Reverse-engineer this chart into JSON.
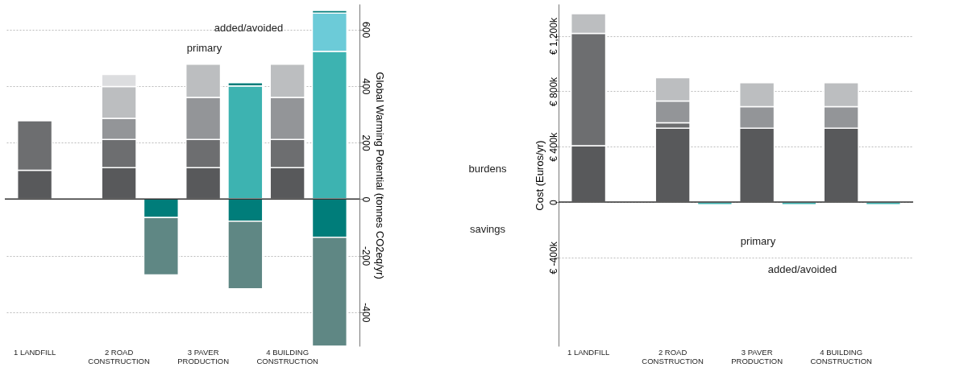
{
  "chart_data": [
    {
      "type": "bar",
      "stacked": true,
      "ylabel": "Global Warming Potential (tonnes CO2eq/yr)",
      "categories": [
        "1 LANDFILL",
        null,
        "2 ROAD CONSTRUCTION",
        null,
        "3 PAVER PRODUCTION",
        null,
        "4 BUILDING CONSTRUCTION",
        null
      ],
      "series": [
        {
          "color": "#58595b",
          "values": [
            102,
            null,
            111,
            null,
            111,
            null,
            111,
            null
          ]
        },
        {
          "color": "#6d6e70",
          "values": [
            175,
            null,
            100,
            null,
            100,
            null,
            100,
            null
          ]
        },
        {
          "color": "#939598",
          "values": [
            null,
            null,
            75,
            null,
            149,
            null,
            149,
            null
          ]
        },
        {
          "color": "#bcbec0",
          "values": [
            null,
            null,
            112,
            null,
            117,
            null,
            117,
            null
          ]
        },
        {
          "color": "#dcdddf",
          "values": [
            null,
            null,
            43,
            null,
            null,
            null,
            null,
            null
          ]
        },
        {
          "color": "#3db3b1",
          "values": [
            null,
            null,
            null,
            null,
            null,
            400,
            null,
            523
          ]
        },
        {
          "color": "#6ccbd8",
          "values": [
            null,
            null,
            null,
            null,
            null,
            null,
            null,
            135
          ]
        },
        {
          "color": "#007d7a",
          "values": [
            null,
            null,
            null,
            null,
            null,
            12,
            null,
            9
          ]
        },
        {
          "color": "#007d7a",
          "values": [
            null,
            null,
            null,
            -65,
            null,
            -78,
            null,
            -135
          ]
        },
        {
          "color": "#5f8784",
          "values": [
            null,
            null,
            null,
            -203,
            null,
            -239,
            null,
            -385
          ]
        }
      ],
      "ylim": [
        -520,
        690
      ],
      "yticks": [
        -400,
        -200,
        0,
        200,
        400,
        600
      ],
      "grid": "y",
      "legend": false,
      "ref_lines": [
        {
          "axis": "y",
          "value": 0,
          "color": "#333333"
        }
      ],
      "annotations": [
        "primary",
        "added/avoided"
      ]
    },
    {
      "type": "bar",
      "stacked": true,
      "ylabel": "Cost (Euros/yr)",
      "categories": [
        "1 LANDFILL",
        null,
        "2 ROAD CONSTRUCTION",
        null,
        "3 PAVER PRODUCTION",
        null,
        "4 BUILDING CONSTRUCTION",
        null
      ],
      "series": [
        {
          "color": "#58595b",
          "values": [
            407,
            null,
            533,
            null,
            533,
            null,
            533,
            null
          ]
        },
        {
          "color": "#6d6e70",
          "values": [
            811,
            null,
            40,
            null,
            null,
            null,
            null,
            null
          ]
        },
        {
          "color": "#939598",
          "values": [
            null,
            null,
            156,
            null,
            156,
            null,
            156,
            null
          ]
        },
        {
          "color": "#bcbec0",
          "values": [
            142,
            null,
            169,
            null,
            173,
            null,
            173,
            null
          ]
        },
        {
          "color": "#3db3b1",
          "values": [
            null,
            null,
            null,
            -18,
            null,
            -18,
            null,
            -18
          ]
        }
      ],
      "ylim": [
        -1040,
        1430
      ],
      "yticks": [
        {
          "value": -400,
          "label": "€ -400k"
        },
        0,
        {
          "value": 400,
          "label": "€ 400k"
        },
        {
          "value": 800,
          "label": "€ 800k"
        },
        {
          "value": 1200,
          "label": "€ 1,200k"
        }
      ],
      "grid": "y",
      "legend": false,
      "ref_lines": [
        {
          "axis": "y",
          "value": 0,
          "color": "#333333"
        }
      ],
      "annotations": [
        "primary",
        "added/avoided",
        "burdens",
        "savings"
      ]
    }
  ]
}
